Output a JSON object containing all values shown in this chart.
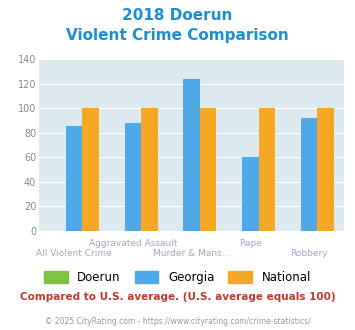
{
  "title_line1": "2018 Doerun",
  "title_line2": "Violent Crime Comparison",
  "title_color": "#1c8fd1",
  "categories_5": [
    "All Violent Crime",
    "Aggravated Assault",
    "Murder & Mans...",
    "Rape",
    "Robbery"
  ],
  "doerun_values": [
    0,
    0,
    0,
    0,
    0
  ],
  "georgia_values": [
    86,
    88,
    124,
    60,
    92
  ],
  "national_values": [
    100,
    100,
    100,
    100,
    100
  ],
  "doerun_color": "#7dc242",
  "georgia_color": "#4fa8e8",
  "national_color": "#f5a824",
  "ylim": [
    0,
    140
  ],
  "yticks": [
    0,
    20,
    40,
    60,
    80,
    100,
    120,
    140
  ],
  "plot_bg_color": "#dce9f0",
  "grid_color": "#ffffff",
  "xtick_color": "#b0a0c0",
  "ytick_color": "#888888",
  "footer_text": "Compared to U.S. average. (U.S. average equals 100)",
  "footer_color": "#c0392b",
  "credit_text": "© 2025 CityRating.com - https://www.cityrating.com/crime-statistics/",
  "credit_color": "#999999",
  "x_top_labels": [
    "",
    "Aggravated Assault",
    "",
    "Rape",
    ""
  ],
  "x_bot_labels": [
    "All Violent Crime",
    "",
    "Murder & Mans...",
    "",
    "Robbery"
  ]
}
